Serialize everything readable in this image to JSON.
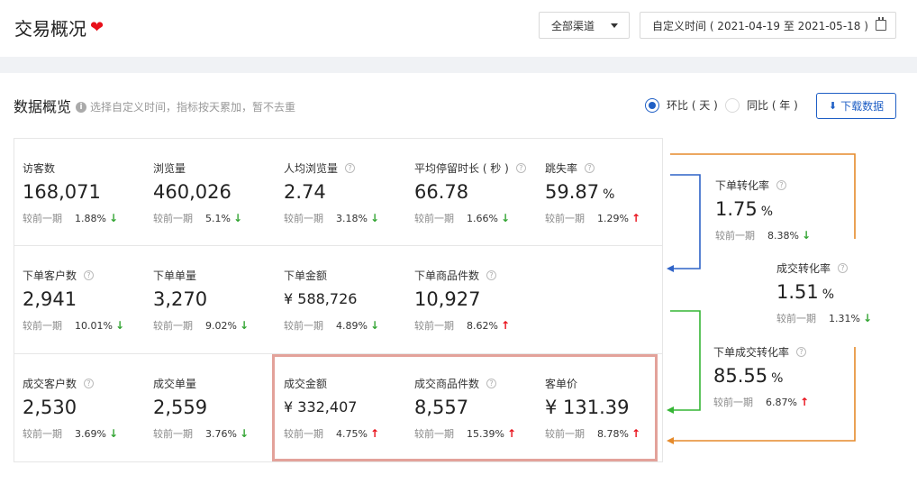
{
  "header": {
    "title": "交易概况",
    "channel_select": "全部渠道",
    "date_range": "自定义时间 ( 2021-04-19 至 2021-05-18 )"
  },
  "overview": {
    "title": "数据概览",
    "hint": "选择自定义时间，指标按天累加，暂不去重",
    "radio_day": "环比 ( 天 )",
    "radio_year": "同比 ( 年 )",
    "download_label": "下载数据"
  },
  "compare_label": "较前一期",
  "metrics": [
    {
      "label": "访客数",
      "value": "168,071",
      "unit": "",
      "pct": "1.88%",
      "dir": "down",
      "help": false
    },
    {
      "label": "浏览量",
      "value": "460,026",
      "unit": "",
      "pct": "5.1%",
      "dir": "down",
      "help": false
    },
    {
      "label": "人均浏览量",
      "value": "2.74",
      "unit": "",
      "pct": "3.18%",
      "dir": "down",
      "help": true
    },
    {
      "label": "平均停留时长 ( 秒 )",
      "value": "66.78",
      "unit": "",
      "pct": "1.66%",
      "dir": "down",
      "help": true
    },
    {
      "label": "跳失率",
      "value": "59.87",
      "unit": "%",
      "pct": "1.29%",
      "dir": "up",
      "help": true
    },
    {
      "label": "下单客户数",
      "value": "2,941",
      "unit": "",
      "pct": "10.01%",
      "dir": "down",
      "help": true
    },
    {
      "label": "下单单量",
      "value": "3,270",
      "unit": "",
      "pct": "9.02%",
      "dir": "down",
      "help": false
    },
    {
      "label": "下单金额",
      "value": "¥ 588,726",
      "unit": "",
      "pct": "4.89%",
      "dir": "down",
      "help": false,
      "small": true
    },
    {
      "label": "下单商品件数",
      "value": "10,927",
      "unit": "",
      "pct": "8.62%",
      "dir": "up",
      "help": true
    },
    {
      "label": "成交客户数",
      "value": "2,530",
      "unit": "",
      "pct": "3.69%",
      "dir": "down",
      "help": true
    },
    {
      "label": "成交单量",
      "value": "2,559",
      "unit": "",
      "pct": "3.76%",
      "dir": "down",
      "help": false
    },
    {
      "label": "成交金额",
      "value": "¥ 332,407",
      "unit": "",
      "pct": "4.75%",
      "dir": "up",
      "help": false,
      "small": true
    },
    {
      "label": "成交商品件数",
      "value": "8,557",
      "unit": "",
      "pct": "15.39%",
      "dir": "up",
      "help": true
    },
    {
      "label": "客单价",
      "value": "¥ 131.39",
      "unit": "",
      "pct": "8.78%",
      "dir": "up",
      "help": false
    }
  ],
  "rates": [
    {
      "label": "下单转化率",
      "value": "1.75",
      "unit": "%",
      "pct": "8.38%",
      "dir": "down"
    },
    {
      "label": "成交转化率",
      "value": "1.51",
      "unit": "%",
      "pct": "1.31%",
      "dir": "down"
    },
    {
      "label": "下单成交转化率",
      "value": "85.55",
      "unit": "%",
      "pct": "6.87%",
      "dir": "up"
    }
  ],
  "colors": {
    "accent": "#1f5fc5",
    "up": "#e8101a",
    "down": "#35a535",
    "flow_blue": "#2f63c7",
    "flow_green": "#35b535",
    "flow_orange": "#e58a2b",
    "highlight": "#e3a29a"
  }
}
